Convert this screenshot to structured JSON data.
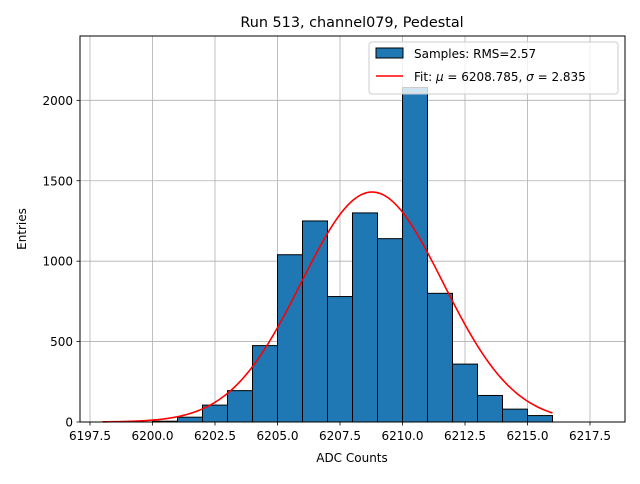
{
  "chart_data": {
    "type": "bar",
    "title": "Run 513, channel079, Pedestal",
    "xlabel": "ADC Counts",
    "ylabel": "Entries",
    "xlim": [
      6197.1,
      6218.9
    ],
    "ylim": [
      0,
      2400
    ],
    "grid": true,
    "legend_position": "top-right",
    "x_ticks": [
      6197.5,
      6200.0,
      6202.5,
      6205.0,
      6207.5,
      6210.0,
      6212.5,
      6215.0,
      6217.5
    ],
    "x_tick_labels": [
      "6197.5",
      "6200.0",
      "6202.5",
      "6205.0",
      "6207.5",
      "6210.0",
      "6212.5",
      "6215.0",
      "6217.5"
    ],
    "y_ticks": [
      0,
      500,
      1000,
      1500,
      2000
    ],
    "y_tick_labels": [
      "0",
      "500",
      "1000",
      "1500",
      "2000"
    ],
    "histogram": {
      "name": "Samples",
      "legend_label": "Samples: RMS=2.57",
      "color": "#1f77b4",
      "edge_color": "#000000",
      "bin_width": 1.0,
      "bins": [
        {
          "start": 6200.0,
          "count": 5
        },
        {
          "start": 6201.0,
          "count": 30
        },
        {
          "start": 6202.0,
          "count": 105
        },
        {
          "start": 6203.0,
          "count": 195
        },
        {
          "start": 6204.0,
          "count": 475
        },
        {
          "start": 6205.0,
          "count": 1040
        },
        {
          "start": 6206.0,
          "count": 1250
        },
        {
          "start": 6207.0,
          "count": 780
        },
        {
          "start": 6208.0,
          "count": 1300
        },
        {
          "start": 6209.0,
          "count": 1140
        },
        {
          "start": 6210.0,
          "count": 2080
        },
        {
          "start": 6211.0,
          "count": 800
        },
        {
          "start": 6212.0,
          "count": 360
        },
        {
          "start": 6213.0,
          "count": 165
        },
        {
          "start": 6214.0,
          "count": 80
        },
        {
          "start": 6215.0,
          "count": 40
        }
      ]
    },
    "fit": {
      "name": "Fit",
      "legend_prefix": "Fit: ",
      "legend_mu": "μ",
      "legend_mu_value": " = 6208.785, ",
      "legend_sigma": "σ",
      "legend_sigma_value": " = 2.835",
      "color": "#ff0000",
      "mu": 6208.785,
      "sigma": 2.835,
      "amplitude": 1430,
      "x_range": [
        6198.0,
        6216.0
      ]
    }
  }
}
